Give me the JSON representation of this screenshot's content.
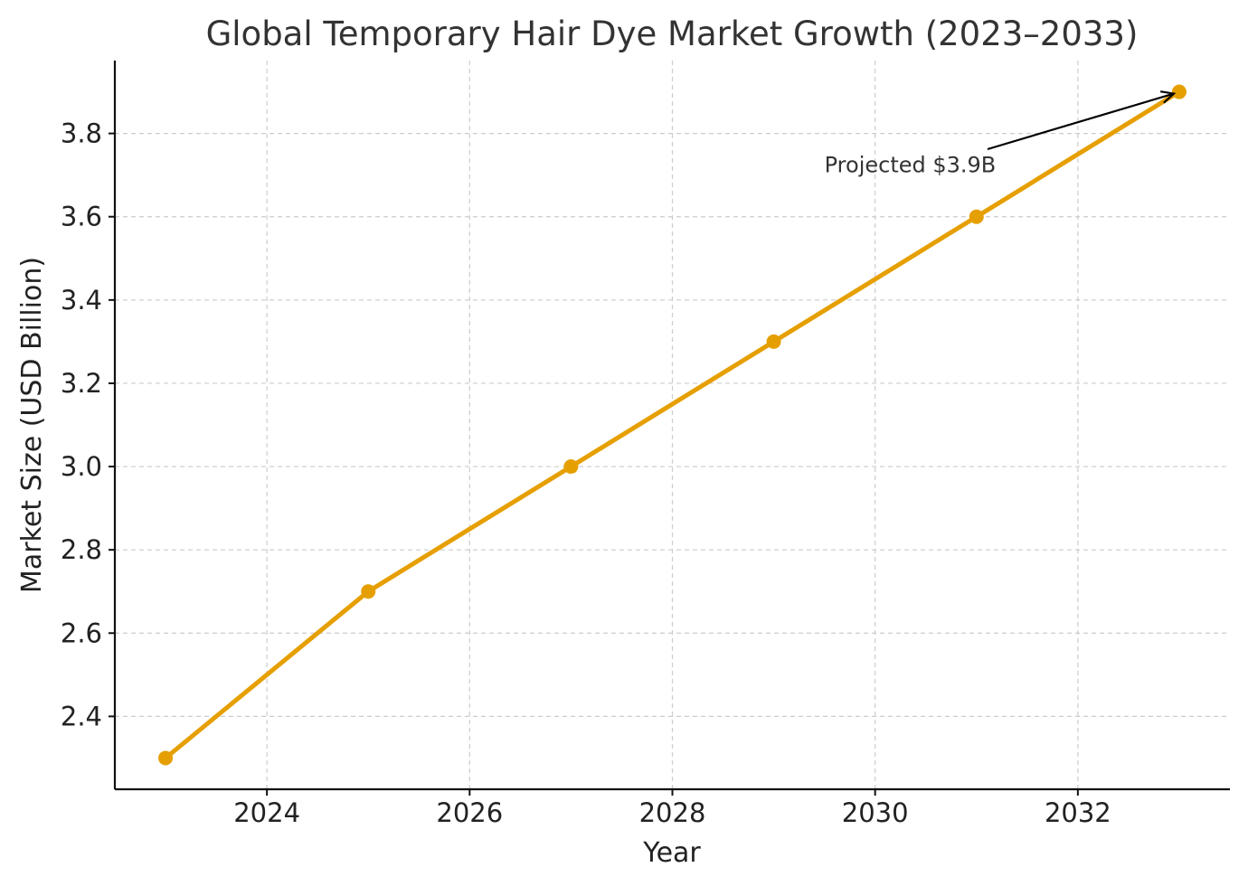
{
  "chart_data": {
    "type": "line",
    "title": "Global Temporary Hair Dye Market Growth (2023–2033)",
    "xlabel": "Year",
    "ylabel": "Market Size (USD Billion)",
    "x": [
      2023,
      2025,
      2027,
      2029,
      2031,
      2033
    ],
    "series": [
      {
        "values": [
          2.3,
          2.7,
          3.0,
          3.3,
          3.6,
          3.9
        ],
        "color": "#E69F00"
      }
    ],
    "xlim": [
      2022.5,
      2033.5
    ],
    "ylim": [
      2.225,
      3.975
    ],
    "xticks": [
      2024,
      2026,
      2028,
      2030,
      2032
    ],
    "yticks": [
      2.4,
      2.6,
      2.8,
      3.0,
      3.2,
      3.4,
      3.6,
      3.8
    ],
    "grid": true,
    "annotation": {
      "text": "Projected $3.9B",
      "target_x": 2033,
      "target_y": 3.9,
      "text_x": 2029.5,
      "text_y": 3.7
    }
  }
}
